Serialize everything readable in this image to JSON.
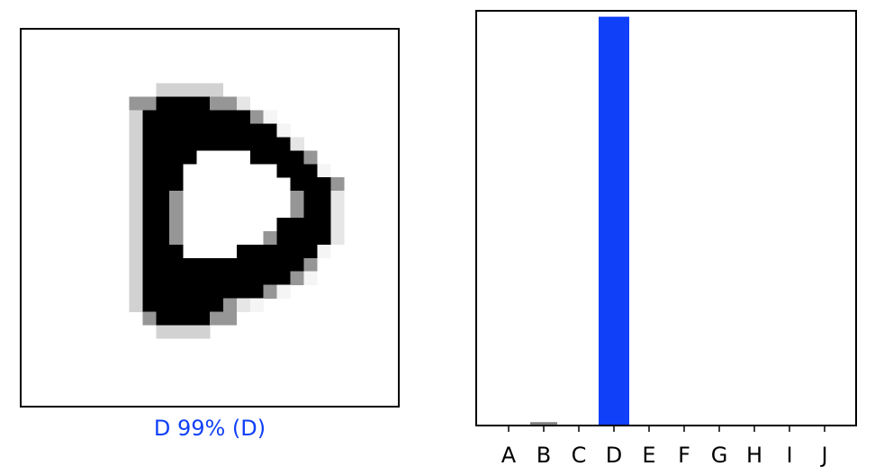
{
  "colors": {
    "highlight": "#1040f8",
    "other_bar": "#808080",
    "pixel_dark": "#000000"
  },
  "prediction": {
    "label": "D 99% (D)",
    "predicted_letter": "D",
    "true_letter": "D",
    "confidence_percent": 99
  },
  "digit_image": {
    "size": 28,
    "description_of_encoding": "grayscale intensity 0-255 per pixel, 255 = black ink",
    "rows": [
      "............................",
      "............................",
      "............................",
      "............................",
      "..........aaaaa.............",
      "........bbkkkkbbc...........",
      "........akkkkkkkkbd.........",
      "........akkkkkkkkkkd........",
      "........akkkkkkkkkkkc.......",
      "........akkkk....kkkkb......",
      "........akkk.......kkkd.....",
      "........akkk........kkkb....",
      "........akkb........bkkc....",
      "........akkb........bkkc....",
      "........akkb.......kkkkc....",
      "........akkb......bkkkkc....",
      "........akkk....kkkkkkd.....",
      "........akkkkkkkkkkkkb......",
      "........akkkkkkkkkkkbd......",
      "........akkkkkkkkkbd........",
      "........akkkkkkbcd..........",
      ".........bkkkkbb............",
      "..........aaaa..............",
      "............................",
      "............................",
      "............................",
      "............................",
      "............................"
    ]
  },
  "chart_data": {
    "type": "bar",
    "categories": [
      "A",
      "B",
      "C",
      "D",
      "E",
      "F",
      "G",
      "H",
      "I",
      "J"
    ],
    "values": [
      0.0,
      0.006,
      0.0,
      0.99,
      0.0,
      0.0,
      0.0,
      0.0,
      0.0,
      0.0
    ],
    "highlight_category": "D",
    "title": "",
    "xlabel": "",
    "ylabel": "",
    "ylim": [
      0,
      1
    ],
    "grid": false
  }
}
